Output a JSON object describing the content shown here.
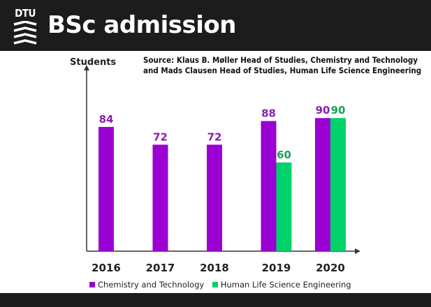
{
  "header": {
    "logo_text": "DTU",
    "title": "BSc admission"
  },
  "source": {
    "line1": "Source: Klaus B. Møller Head of Studies, Chemistry and Technology",
    "line2": "and Mads Clausen Head of Studies, Human Life Science Engineering"
  },
  "colors": {
    "chemistry": "#9b00d3",
    "human_life": "#00d26a",
    "header_bg": "#1c1c1c"
  },
  "chart_data": {
    "type": "bar",
    "title": "",
    "xlabel": "",
    "ylabel": "Students",
    "categories": [
      "2016",
      "2017",
      "2018",
      "2019",
      "2020"
    ],
    "series": [
      {
        "name": "Chemistry and Technology",
        "values": [
          84,
          72,
          72,
          88,
          90
        ]
      },
      {
        "name": "Human Life Science Engineering",
        "values": [
          null,
          null,
          null,
          60,
          90
        ]
      }
    ],
    "ylim": [
      0,
      100
    ],
    "grid": false,
    "legend": "bottom"
  }
}
